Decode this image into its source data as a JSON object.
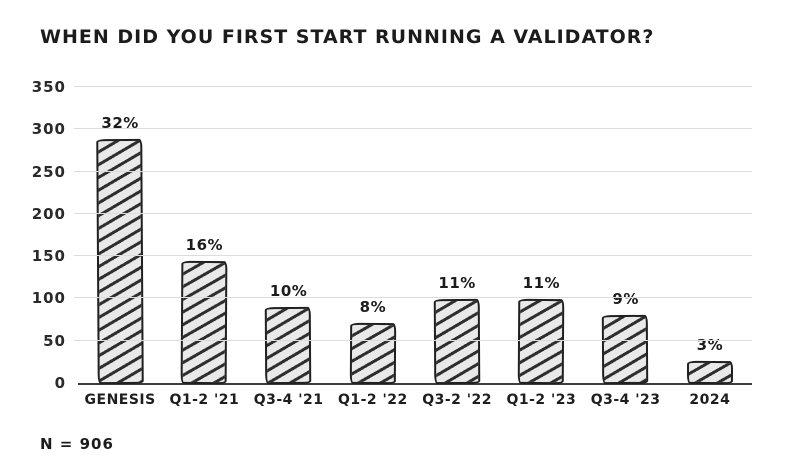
{
  "header": {
    "title": "WHEN DID YOU FIRST START RUNNING A VALIDATOR?"
  },
  "footer": {
    "note": "N = 906"
  },
  "colors": {
    "background": "#ffffff",
    "ink": "#1f1f1f",
    "bar_fill": "#e9e9e9",
    "bar_hatch": "#2d2d2d",
    "gridline": "#dcdcdc",
    "baseline": "#3d3d3d"
  },
  "chart_data": {
    "type": "bar",
    "title": "WHEN DID YOU FIRST START RUNNING A VALIDATOR?",
    "categories": [
      "GENESIS",
      "Q1-2 '21",
      "Q3-4 '21",
      "Q1-2 '22",
      "Q3-2 '22",
      "Q1-2 '23",
      "Q3-4 '23",
      "2024"
    ],
    "values": [
      290,
      145,
      91,
      72,
      100,
      100,
      82,
      27
    ],
    "percent_labels": [
      "32%",
      "16%",
      "10%",
      "8%",
      "11%",
      "11%",
      "9%",
      "3%"
    ],
    "sample_size": 906,
    "note": "N = 906",
    "xlabel": "",
    "ylabel": "",
    "ylim": [
      0,
      350
    ],
    "yticks": [
      0,
      50,
      100,
      150,
      200,
      250,
      300,
      350
    ],
    "grid": true,
    "legend": false,
    "style": "hand-drawn, diagonal-hatched bars"
  }
}
